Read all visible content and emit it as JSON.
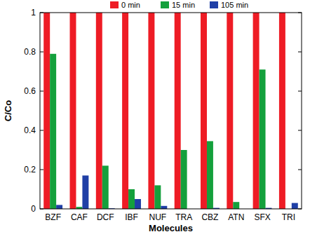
{
  "chart_data": {
    "type": "bar",
    "x_label": "Molecules",
    "y_label": "C/Co",
    "categories": [
      "BZF",
      "CAF",
      "DCF",
      "IBF",
      "NUF",
      "TRA",
      "CBZ",
      "ATN",
      "SFX",
      "TRI"
    ],
    "series": [
      {
        "name": "0 min",
        "color": "#ee1c25",
        "values": [
          1,
          1,
          1,
          1,
          1,
          1,
          1,
          1,
          1,
          1
        ]
      },
      {
        "name": "15 min",
        "color": "#14a03c",
        "values": [
          0.79,
          0.01,
          0.22,
          0.1,
          0.12,
          0.3,
          0.345,
          0.035,
          0.71,
          0
        ]
      },
      {
        "name": "105 min",
        "color": "#1f3fa6",
        "values": [
          0.02,
          0.17,
          0.003,
          0.05,
          0.015,
          0,
          0.005,
          0,
          0.005,
          0.03
        ]
      }
    ],
    "ylim": [
      0,
      1
    ],
    "yticks": [
      0,
      0.2,
      0.4,
      0.6,
      0.8,
      1
    ],
    "legend": "top"
  }
}
